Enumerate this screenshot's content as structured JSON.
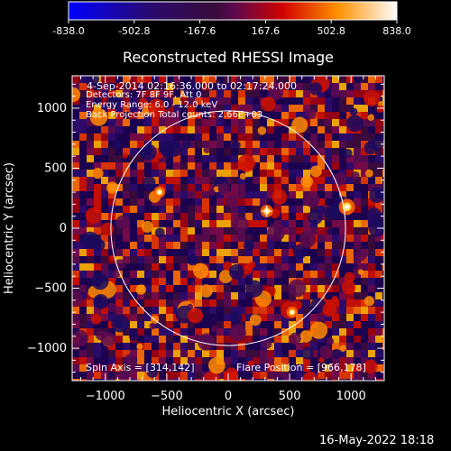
{
  "chart_data": {
    "type": "heatmap",
    "title": "Reconstructed RHESSI Image",
    "xlabel": "Heliocentric X (arcsec)",
    "ylabel": "Heliocentric Y (arcsec)",
    "xlim": [
      -1270,
      1270
    ],
    "ylim": [
      -1270,
      1270
    ],
    "xticks": [
      -1000,
      -500,
      0,
      500,
      1000
    ],
    "yticks": [
      -1000,
      -500,
      0,
      500,
      1000
    ],
    "colorbar": {
      "range": [
        -838.0,
        838.0
      ],
      "tick_labels": [
        "-838.0",
        "-502.8",
        "-167.6",
        "167.6",
        "502.8",
        "838.0"
      ]
    },
    "solar_disk_radius_arcsec": 955,
    "flare_marker": [
      314,
      142
    ],
    "annotations": [
      "4-Sep-2014 02:16:36.000 to 02:17:24.000",
      "Detectors: 7F 8F 9F, Att 0",
      "Energy Range: 6.0 - 12.0 keV",
      "Back Projection    Total counts: 2.66E+03",
      "Spin Axis = [314,142]",
      "Flare Position = [966,178]"
    ],
    "bright_sources": [
      {
        "x": 966,
        "y": 178,
        "value": 838
      },
      {
        "x": 314,
        "y": 142,
        "value": 650
      },
      {
        "x": -560,
        "y": 300,
        "value": 600
      },
      {
        "x": 520,
        "y": -700,
        "value": 580
      }
    ]
  },
  "footer": {
    "date": "16-May-2022 18:18"
  },
  "colors": {
    "axes": "#ffffff",
    "disk": "#ffffff",
    "background": "#000000"
  }
}
